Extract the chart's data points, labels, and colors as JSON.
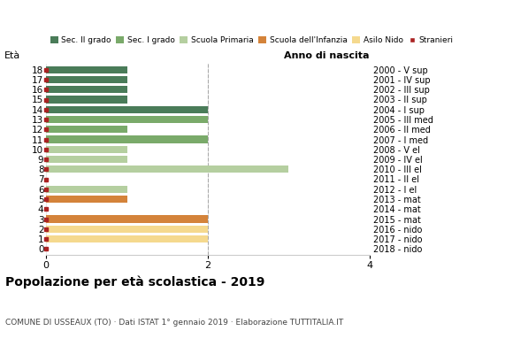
{
  "title": "Popolazione per età scolastica - 2019",
  "subtitle": "COMUNE DI USSEAUX (TO) · Dati ISTAT 1° gennaio 2019 · Elaborazione TUTTITALIA.IT",
  "label_left": "Età",
  "label_right": "Anno di nascita",
  "ages": [
    18,
    17,
    16,
    15,
    14,
    13,
    12,
    11,
    10,
    9,
    8,
    7,
    6,
    5,
    4,
    3,
    2,
    1,
    0
  ],
  "years": [
    "2000 - V sup",
    "2001 - IV sup",
    "2002 - III sup",
    "2003 - II sup",
    "2004 - I sup",
    "2005 - III med",
    "2006 - II med",
    "2007 - I med",
    "2008 - V el",
    "2009 - IV el",
    "2010 - III el",
    "2011 - II el",
    "2012 - I el",
    "2013 - mat",
    "2014 - mat",
    "2015 - mat",
    "2016 - nido",
    "2017 - nido",
    "2018 - nido"
  ],
  "values": [
    1,
    1,
    1,
    1,
    2,
    2,
    1,
    2,
    1,
    1,
    3,
    0,
    1,
    1,
    0,
    2,
    2,
    2,
    0
  ],
  "bar_colors": [
    "#4a7c59",
    "#4a7c59",
    "#4a7c59",
    "#4a7c59",
    "#4a7c59",
    "#7aaa6a",
    "#7aaa6a",
    "#7aaa6a",
    "#b5cfa0",
    "#b5cfa0",
    "#b5cfa0",
    "#b5cfa0",
    "#b5cfa0",
    "#d4833a",
    "#d4833a",
    "#d4833a",
    "#f5d98e",
    "#f5d98e",
    "#f5d98e"
  ],
  "legend_labels": [
    "Sec. II grado",
    "Sec. I grado",
    "Scuola Primaria",
    "Scuola dell'Infanzia",
    "Asilo Nido",
    "Stranieri"
  ],
  "legend_colors": [
    "#4a7c59",
    "#7aaa6a",
    "#b5cfa0",
    "#d4833a",
    "#f5d98e",
    "#aa2222"
  ],
  "stranieri_color": "#aa2222",
  "xlim": [
    0,
    4
  ],
  "xticks": [
    0,
    2,
    4
  ],
  "dashed_line_x": 2,
  "bg_color": "#ffffff",
  "grid_color": "#dddddd"
}
